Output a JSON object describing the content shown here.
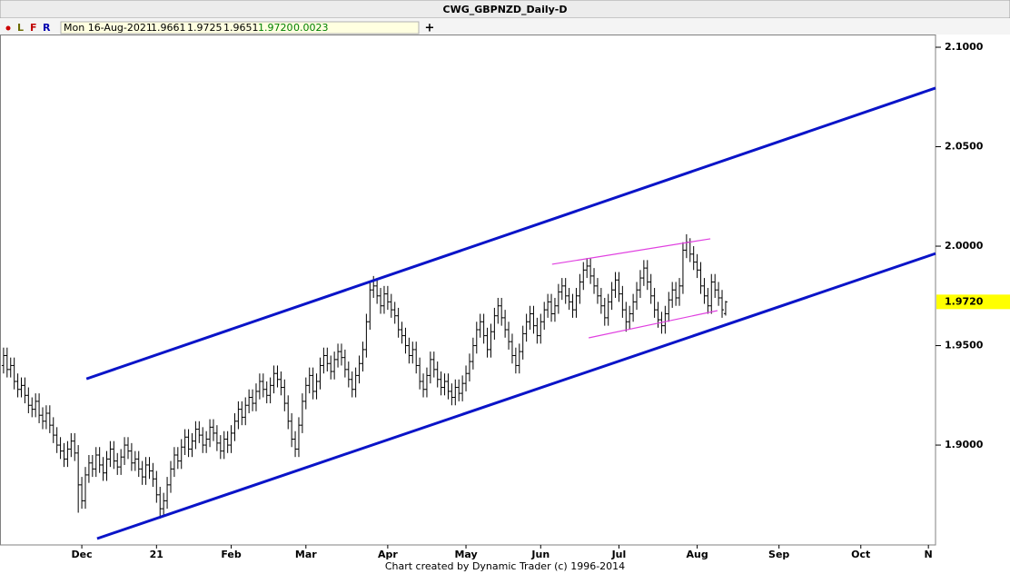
{
  "chart_data": {
    "type": "ohlc",
    "title": "CWG_GBPNZD_Daily-D",
    "toolbar": [
      "L",
      "F",
      "R"
    ],
    "add_button": "+",
    "info": {
      "date": "Mon 16-Aug-2021",
      "open": "1.9661",
      "high": "1.9725",
      "low": "1.9651",
      "close": "1.9720",
      "change": "0.0023"
    },
    "footer": "Chart created by Dynamic Trader  (c)  1996-2014",
    "color": "#000000",
    "xlim": [
      -1,
      262
    ],
    "xticks": [
      {
        "value": 22,
        "label": "Dec"
      },
      {
        "value": 43,
        "label": "21"
      },
      {
        "value": 64,
        "label": "Feb"
      },
      {
        "value": 85,
        "label": "Mar"
      },
      {
        "value": 108,
        "label": "Apr"
      },
      {
        "value": 130,
        "label": "May"
      },
      {
        "value": 151,
        "label": "Jun"
      },
      {
        "value": 173,
        "label": "Jul"
      },
      {
        "value": 195,
        "label": "Aug"
      },
      {
        "value": 218,
        "label": "Sep"
      },
      {
        "value": 241,
        "label": "Oct"
      },
      {
        "value": 260,
        "label": "N"
      }
    ],
    "ylim": [
      1.8498,
      2.1064
    ],
    "yticks": [
      {
        "value": 2.1,
        "label": "2.1000"
      },
      {
        "value": 2.05,
        "label": "2.0500"
      },
      {
        "value": 2.0,
        "label": "2.0000"
      },
      {
        "value": 1.95,
        "label": "1.9500"
      },
      {
        "value": 1.9,
        "label": "1.9000"
      }
    ],
    "last_price": {
      "value": 1.972,
      "label": "1.9720"
    },
    "open": [
      1.94,
      1.945,
      1.938,
      1.94,
      1.932,
      1.928,
      1.93,
      1.925,
      1.92,
      1.918,
      1.922,
      1.915,
      1.912,
      1.916,
      1.91,
      1.905,
      1.9,
      1.897,
      1.893,
      1.898,
      1.902,
      1.896,
      1.88,
      1.872,
      1.885,
      1.891,
      1.888,
      1.895,
      1.89,
      1.886,
      1.893,
      1.898,
      1.892,
      1.889,
      1.894,
      1.9,
      1.897,
      1.891,
      1.893,
      1.888,
      1.884,
      1.89,
      1.887,
      1.883,
      1.875,
      1.868,
      1.872,
      1.88,
      1.888,
      1.895,
      1.892,
      1.899,
      1.904,
      1.898,
      1.902,
      1.908,
      1.905,
      1.9,
      1.903,
      1.909,
      1.906,
      1.901,
      1.897,
      1.903,
      1.9,
      1.906,
      1.912,
      1.918,
      1.914,
      1.92,
      1.924,
      1.921,
      1.927,
      1.932,
      1.928,
      1.925,
      1.93,
      1.936,
      1.933,
      1.929,
      1.921,
      1.912,
      1.903,
      1.898,
      1.91,
      1.922,
      1.93,
      1.935,
      1.927,
      1.932,
      1.94,
      1.945,
      1.941,
      1.937,
      1.943,
      1.947,
      1.944,
      1.938,
      1.933,
      1.928,
      1.935,
      1.941,
      1.948,
      1.962,
      1.978,
      1.98,
      1.975,
      1.97,
      1.976,
      1.972,
      1.968,
      1.965,
      1.958,
      1.955,
      1.95,
      1.945,
      1.948,
      1.94,
      1.932,
      1.928,
      1.935,
      1.943,
      1.938,
      1.933,
      1.929,
      1.932,
      1.927,
      1.924,
      1.929,
      1.926,
      1.931,
      1.936,
      1.942,
      1.95,
      1.958,
      1.962,
      1.955,
      1.948,
      1.957,
      1.965,
      1.97,
      1.964,
      1.958,
      1.952,
      1.945,
      1.94,
      1.947,
      1.956,
      1.962,
      1.966,
      1.96,
      1.955,
      1.962,
      1.968,
      1.972,
      1.966,
      1.97,
      1.977,
      1.98,
      1.975,
      1.972,
      1.968,
      1.975,
      1.982,
      1.988,
      1.99,
      1.985,
      1.98,
      1.975,
      1.97,
      1.964,
      1.972,
      1.978,
      1.983,
      1.976,
      1.968,
      1.962,
      1.966,
      1.972,
      1.978,
      1.984,
      1.989,
      1.982,
      1.975,
      1.968,
      1.963,
      1.96,
      1.966,
      1.973,
      1.978,
      1.974,
      1.98,
      1.998,
      2.002,
      1.996,
      1.992,
      1.988,
      1.98,
      1.975,
      1.97,
      1.982,
      1.978,
      1.974,
      1.9661
    ],
    "high": [
      1.949,
      1.949,
      1.944,
      1.944,
      1.936,
      1.934,
      1.934,
      1.929,
      1.924,
      1.926,
      1.926,
      1.919,
      1.92,
      1.92,
      1.914,
      1.909,
      1.904,
      1.901,
      1.902,
      1.906,
      1.906,
      1.9,
      1.884,
      1.889,
      1.895,
      1.895,
      1.899,
      1.899,
      1.894,
      1.897,
      1.902,
      1.902,
      1.896,
      1.898,
      1.904,
      1.904,
      1.901,
      1.897,
      1.897,
      1.892,
      1.894,
      1.894,
      1.891,
      1.887,
      1.879,
      1.876,
      1.884,
      1.892,
      1.899,
      1.899,
      1.903,
      1.908,
      1.908,
      1.906,
      1.912,
      1.912,
      1.909,
      1.907,
      1.913,
      1.913,
      1.91,
      1.905,
      1.907,
      1.907,
      1.91,
      1.916,
      1.922,
      1.922,
      1.924,
      1.928,
      1.928,
      1.931,
      1.936,
      1.936,
      1.932,
      1.934,
      1.94,
      1.94,
      1.937,
      1.933,
      1.925,
      1.916,
      1.907,
      1.914,
      1.926,
      1.934,
      1.939,
      1.939,
      1.936,
      1.944,
      1.949,
      1.949,
      1.945,
      1.947,
      1.951,
      1.951,
      1.948,
      1.942,
      1.937,
      1.939,
      1.945,
      1.952,
      1.966,
      1.982,
      1.985,
      1.984,
      1.979,
      1.98,
      1.98,
      1.976,
      1.972,
      1.969,
      1.962,
      1.959,
      1.954,
      1.952,
      1.952,
      1.944,
      1.936,
      1.939,
      1.947,
      1.947,
      1.942,
      1.937,
      1.936,
      1.936,
      1.931,
      1.933,
      1.933,
      1.935,
      1.94,
      1.946,
      1.954,
      1.962,
      1.966,
      1.966,
      1.959,
      1.961,
      1.969,
      1.974,
      1.974,
      1.968,
      1.962,
      1.956,
      1.949,
      1.951,
      1.96,
      1.966,
      1.97,
      1.97,
      1.964,
      1.966,
      1.972,
      1.976,
      1.976,
      1.974,
      1.981,
      1.984,
      1.984,
      1.979,
      1.976,
      1.979,
      1.986,
      1.992,
      1.994,
      1.994,
      1.989,
      1.984,
      1.979,
      1.974,
      1.976,
      1.982,
      1.987,
      1.987,
      1.98,
      1.972,
      1.97,
      1.976,
      1.982,
      1.988,
      1.993,
      1.993,
      1.986,
      1.979,
      1.972,
      1.967,
      1.97,
      1.977,
      1.982,
      1.982,
      1.984,
      2.002,
      2.006,
      2.004,
      2.0,
      1.996,
      1.992,
      1.984,
      1.979,
      1.986,
      1.986,
      1.982,
      1.978,
      1.9725
    ],
    "low": [
      1.936,
      1.934,
      1.934,
      1.928,
      1.924,
      1.924,
      1.921,
      1.916,
      1.914,
      1.914,
      1.911,
      1.908,
      1.908,
      1.906,
      1.901,
      1.896,
      1.893,
      1.889,
      1.889,
      1.894,
      1.892,
      1.866,
      1.868,
      1.868,
      1.881,
      1.884,
      1.884,
      1.886,
      1.882,
      1.882,
      1.889,
      1.888,
      1.885,
      1.885,
      1.89,
      1.893,
      1.887,
      1.887,
      1.884,
      1.88,
      1.88,
      1.883,
      1.879,
      1.871,
      1.863,
      1.864,
      1.868,
      1.876,
      1.884,
      1.888,
      1.888,
      1.895,
      1.894,
      1.894,
      1.898,
      1.901,
      1.896,
      1.896,
      1.899,
      1.902,
      1.897,
      1.893,
      1.893,
      1.896,
      1.896,
      1.902,
      1.908,
      1.91,
      1.91,
      1.916,
      1.917,
      1.917,
      1.923,
      1.924,
      1.921,
      1.921,
      1.926,
      1.929,
      1.925,
      1.917,
      1.908,
      1.899,
      1.894,
      1.894,
      1.906,
      1.918,
      1.926,
      1.923,
      1.923,
      1.928,
      1.936,
      1.937,
      1.933,
      1.933,
      1.939,
      1.94,
      1.934,
      1.929,
      1.924,
      1.924,
      1.931,
      1.937,
      1.944,
      1.958,
      1.974,
      1.971,
      1.966,
      1.966,
      1.968,
      1.964,
      1.961,
      1.954,
      1.951,
      1.946,
      1.941,
      1.941,
      1.936,
      1.928,
      1.924,
      1.924,
      1.931,
      1.934,
      1.929,
      1.925,
      1.925,
      1.923,
      1.92,
      1.92,
      1.922,
      1.922,
      1.927,
      1.932,
      1.938,
      1.946,
      1.954,
      1.951,
      1.944,
      1.944,
      1.953,
      1.961,
      1.96,
      1.954,
      1.948,
      1.941,
      1.936,
      1.936,
      1.943,
      1.952,
      1.958,
      1.956,
      1.951,
      1.951,
      1.958,
      1.964,
      1.962,
      1.962,
      1.966,
      1.973,
      1.971,
      1.968,
      1.964,
      1.964,
      1.971,
      1.978,
      1.984,
      1.981,
      1.976,
      1.971,
      1.966,
      1.96,
      1.96,
      1.968,
      1.974,
      1.972,
      1.964,
      1.957,
      1.958,
      1.962,
      1.968,
      1.974,
      1.98,
      1.978,
      1.971,
      1.964,
      1.959,
      1.956,
      1.956,
      1.962,
      1.969,
      1.97,
      1.97,
      1.976,
      1.994,
      1.992,
      1.988,
      1.984,
      1.976,
      1.971,
      1.966,
      1.966,
      1.974,
      1.97,
      1.964,
      1.9651
    ],
    "close": [
      1.945,
      1.938,
      1.94,
      1.932,
      1.928,
      1.93,
      1.925,
      1.92,
      1.918,
      1.922,
      1.915,
      1.912,
      1.916,
      1.91,
      1.905,
      1.9,
      1.897,
      1.893,
      1.898,
      1.902,
      1.896,
      1.88,
      1.872,
      1.885,
      1.891,
      1.888,
      1.895,
      1.89,
      1.886,
      1.893,
      1.898,
      1.892,
      1.889,
      1.894,
      1.9,
      1.897,
      1.891,
      1.893,
      1.888,
      1.884,
      1.89,
      1.887,
      1.883,
      1.875,
      1.868,
      1.872,
      1.88,
      1.888,
      1.895,
      1.892,
      1.899,
      1.904,
      1.898,
      1.902,
      1.908,
      1.905,
      1.9,
      1.903,
      1.909,
      1.906,
      1.901,
      1.897,
      1.903,
      1.9,
      1.906,
      1.912,
      1.918,
      1.914,
      1.92,
      1.924,
      1.921,
      1.927,
      1.932,
      1.928,
      1.925,
      1.93,
      1.936,
      1.933,
      1.929,
      1.921,
      1.912,
      1.903,
      1.898,
      1.91,
      1.922,
      1.93,
      1.935,
      1.927,
      1.932,
      1.94,
      1.945,
      1.941,
      1.937,
      1.943,
      1.947,
      1.944,
      1.938,
      1.933,
      1.928,
      1.935,
      1.941,
      1.948,
      1.962,
      1.978,
      1.98,
      1.975,
      1.97,
      1.976,
      1.972,
      1.968,
      1.965,
      1.958,
      1.955,
      1.95,
      1.945,
      1.948,
      1.94,
      1.932,
      1.928,
      1.935,
      1.943,
      1.938,
      1.933,
      1.929,
      1.932,
      1.927,
      1.924,
      1.929,
      1.926,
      1.931,
      1.936,
      1.942,
      1.95,
      1.958,
      1.962,
      1.955,
      1.948,
      1.957,
      1.965,
      1.97,
      1.964,
      1.958,
      1.952,
      1.945,
      1.94,
      1.947,
      1.956,
      1.962,
      1.966,
      1.96,
      1.955,
      1.962,
      1.968,
      1.972,
      1.966,
      1.97,
      1.977,
      1.98,
      1.975,
      1.972,
      1.968,
      1.975,
      1.982,
      1.988,
      1.99,
      1.985,
      1.98,
      1.975,
      1.97,
      1.964,
      1.972,
      1.978,
      1.983,
      1.976,
      1.968,
      1.962,
      1.966,
      1.972,
      1.978,
      1.984,
      1.989,
      1.982,
      1.975,
      1.968,
      1.963,
      1.96,
      1.966,
      1.973,
      1.978,
      1.974,
      1.98,
      1.998,
      2.002,
      1.996,
      1.992,
      1.988,
      1.98,
      1.975,
      1.97,
      1.982,
      1.978,
      1.974,
      1.968,
      1.972
    ],
    "trendlines": [
      {
        "color": "#0a14c8",
        "x": [
          23.3,
          262
        ],
        "y": [
          1.9333,
          2.0795
        ]
      },
      {
        "color": "#0a14c8",
        "x": [
          26.3,
          262
        ],
        "y": [
          1.853,
          1.9963
        ]
      },
      {
        "color": "#e040e0",
        "x": [
          154.2,
          198.7
        ],
        "y": [
          1.9909,
          2.0037
        ]
      },
      {
        "color": "#e040e0",
        "x": [
          164.5,
          200.7
        ],
        "y": [
          1.9539,
          1.9676
        ]
      }
    ]
  }
}
